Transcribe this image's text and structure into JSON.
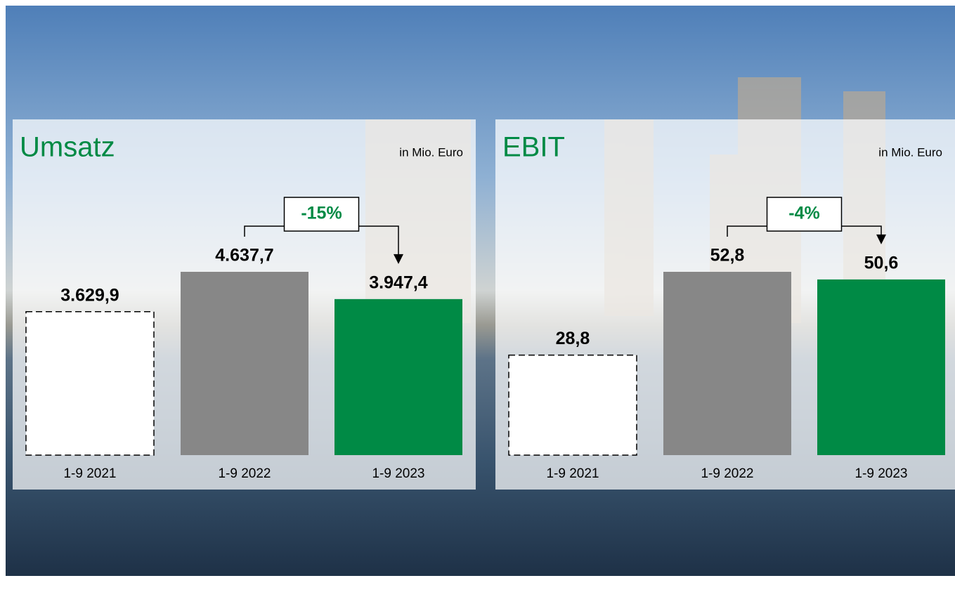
{
  "chart_data": [
    {
      "type": "bar",
      "title": "Umsatz",
      "unit": "in Mio. Euro",
      "categories": [
        "1-9 2021",
        "1-9 2022",
        "1-9 2023"
      ],
      "values": [
        3629.9,
        4637.7,
        3947.4
      ],
      "value_labels": [
        "3.629,9",
        "4.637,7",
        "3.947,4"
      ],
      "colors": [
        "#ffffff",
        "#878787",
        "#008a45"
      ],
      "annotation": "-15%"
    },
    {
      "type": "bar",
      "title": "EBIT",
      "unit": "in Mio. Euro",
      "categories": [
        "1-9 2021",
        "1-9 2022",
        "1-9 2023"
      ],
      "values": [
        28.8,
        52.8,
        50.6
      ],
      "value_labels": [
        "28,8",
        "52,8",
        "50,6"
      ],
      "colors": [
        "#ffffff",
        "#878787",
        "#008a45"
      ],
      "annotation": "-4%"
    }
  ]
}
